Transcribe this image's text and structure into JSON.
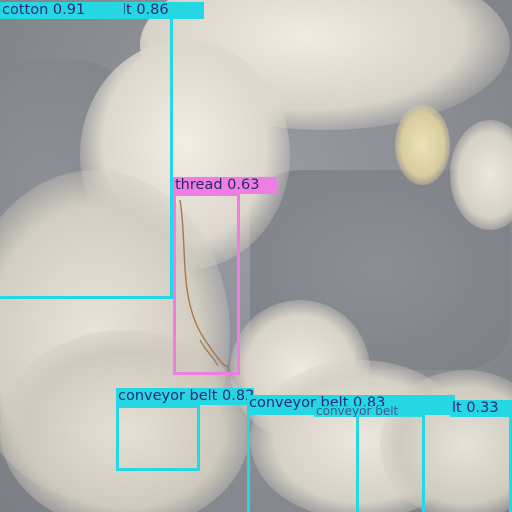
{
  "image": {
    "subject": "cotton fibers on a gray conveyor belt",
    "colors": {
      "belt": "#8a8c93",
      "cotton": "#ddd9cf",
      "cyan_box": "#25d6e3",
      "pink_box": "#ee7ee3"
    }
  },
  "detections": [
    {
      "label": "cotton 0.91",
      "color": "cyan"
    },
    {
      "label": "lt 0.86",
      "color": "cyan"
    },
    {
      "label": "thread 0.63",
      "color": "pink"
    },
    {
      "label": "conveyor belt 0.82",
      "color": "cyan"
    },
    {
      "label": "conveyor belt 0.83",
      "color": "cyan"
    },
    {
      "label": "lt 0.33",
      "color": "cyan"
    },
    {
      "label": "conveyor belt",
      "color": "cyan"
    }
  ]
}
